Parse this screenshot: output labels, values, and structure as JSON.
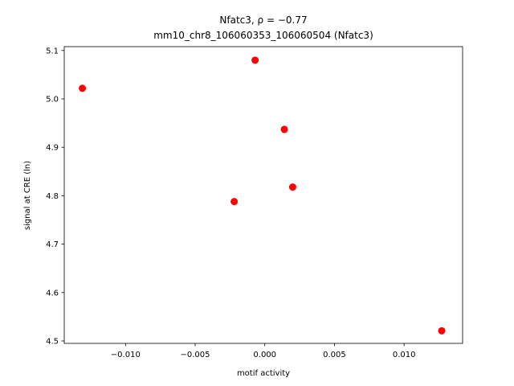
{
  "chart_data": {
    "type": "scatter",
    "title": "Nfatc3, ρ = −0.77",
    "subtitle": "mm10_chr8_106060353_106060504 (Nfatc3)",
    "xlabel": "motif activity",
    "ylabel": "signal at CRE (ln)",
    "xlim": [
      -0.0144,
      0.0142
    ],
    "ylim": [
      4.495,
      5.108
    ],
    "xticks": [
      -0.01,
      -0.005,
      0.0,
      0.005,
      0.01
    ],
    "xtick_labels": [
      "−0.010",
      "−0.005",
      "0.000",
      "0.005",
      "0.010"
    ],
    "yticks": [
      4.5,
      4.6,
      4.7,
      4.8,
      4.9,
      5.0,
      5.1
    ],
    "ytick_labels": [
      "4.5",
      "4.6",
      "4.7",
      "4.8",
      "4.9",
      "5.0",
      "5.1"
    ],
    "grid": false,
    "marker_color": "#ff0000",
    "points": [
      {
        "x": -0.0131,
        "y": 5.022
      },
      {
        "x": -0.0007,
        "y": 5.08
      },
      {
        "x": 0.0014,
        "y": 4.937
      },
      {
        "x": 0.002,
        "y": 4.818
      },
      {
        "x": -0.0022,
        "y": 4.788
      },
      {
        "x": 0.0127,
        "y": 4.521
      }
    ]
  }
}
